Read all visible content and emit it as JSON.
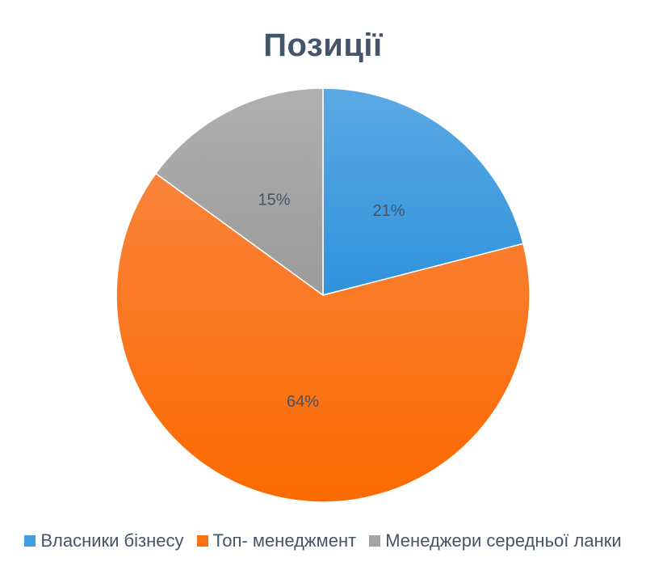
{
  "chart_data": {
    "type": "pie",
    "title": "Позиції",
    "categories": [
      "Власники бізнесу",
      "Топ- менеджмент",
      "Менеджери середньої ланки"
    ],
    "values": [
      21,
      64,
      15
    ],
    "labels": [
      "21%",
      "64%",
      "15%"
    ],
    "colors": [
      "#3f9de0",
      "#fa7214",
      "#a5a5a5"
    ],
    "legend": "bottom"
  }
}
